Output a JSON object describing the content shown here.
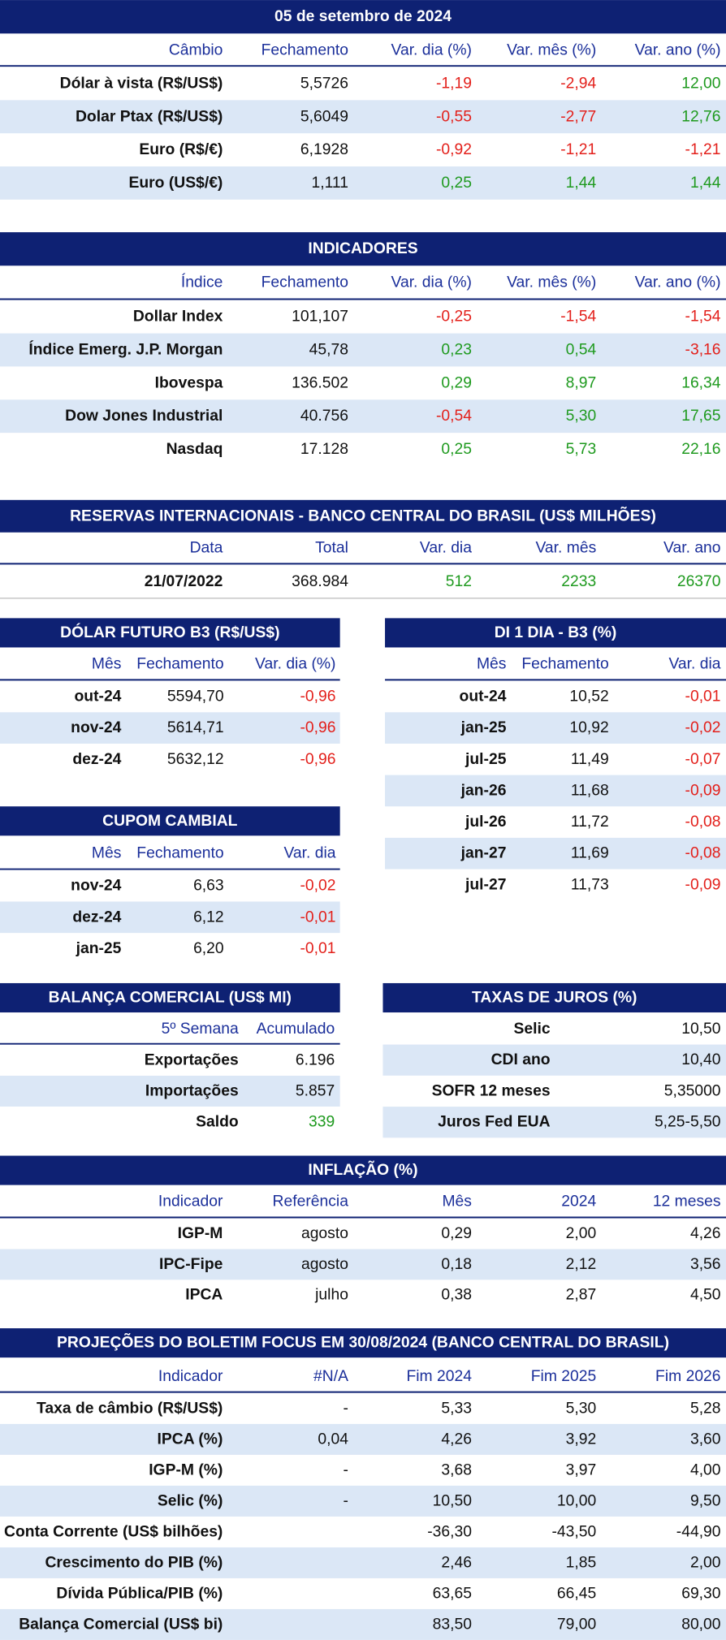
{
  "cambio": {
    "title": "05 de setembro de 2024",
    "columns": [
      "Câmbio",
      "Fechamento",
      "Var. dia (%)",
      "Var. mês (%)",
      "Var. ano (%)"
    ],
    "rows": [
      [
        "Dólar à vista (R$/US$)",
        "5,5726",
        "-1,19",
        "-2,94",
        "12,00"
      ],
      [
        "Dolar Ptax (R$/US$)",
        "5,6049",
        "-0,55",
        "-2,77",
        "12,76"
      ],
      [
        "Euro (R$/€)",
        "6,1928",
        "-0,92",
        "-1,21",
        "-1,21"
      ],
      [
        "Euro (US$/€)",
        "1,111",
        "0,25",
        "1,44",
        "1,44"
      ]
    ]
  },
  "indicadores": {
    "title": "INDICADORES",
    "columns": [
      "Índice",
      "Fechamento",
      "Var. dia (%)",
      "Var. mês (%)",
      "Var. ano (%)"
    ],
    "rows": [
      [
        "Dollar Index",
        "101,107",
        "-0,25",
        "-1,54",
        "-1,54"
      ],
      [
        "Índice Emerg. J.P. Morgan",
        "45,78",
        "0,23",
        "0,54",
        "-3,16"
      ],
      [
        "Ibovespa",
        "136.502",
        "0,29",
        "8,97",
        "16,34"
      ],
      [
        "Dow Jones Industrial",
        "40.756",
        "-0,54",
        "5,30",
        "17,65"
      ],
      [
        "Nasdaq",
        "17.128",
        "0,25",
        "5,73",
        "22,16"
      ]
    ]
  },
  "reservas": {
    "title": "RESERVAS INTERNACIONAIS - BANCO CENTRAL DO BRASIL (US$ MILHÕES)",
    "columns": [
      "Data",
      "Total",
      "Var. dia",
      "Var. mês",
      "Var. ano"
    ],
    "rows": [
      [
        "21/07/2022",
        "368.984",
        "512",
        "2233",
        "26370"
      ]
    ]
  },
  "dolar_futuro": {
    "title": "DÓLAR FUTURO B3 (R$/US$)",
    "columns": [
      "Mês",
      "Fechamento",
      "Var. dia (%)"
    ],
    "rows": [
      [
        "out-24",
        "5594,70",
        "-0,96"
      ],
      [
        "nov-24",
        "5614,71",
        "-0,96"
      ],
      [
        "dez-24",
        "5632,12",
        "-0,96"
      ]
    ]
  },
  "di": {
    "title": "DI 1 DIA - B3 (%)",
    "columns": [
      "Mês",
      "Fechamento",
      "Var. dia"
    ],
    "rows": [
      [
        "out-24",
        "10,52",
        "-0,01"
      ],
      [
        "jan-25",
        "10,92",
        "-0,02"
      ],
      [
        "jul-25",
        "11,49",
        "-0,07"
      ],
      [
        "jan-26",
        "11,68",
        "-0,09"
      ],
      [
        "jul-26",
        "11,72",
        "-0,08"
      ],
      [
        "jan-27",
        "11,69",
        "-0,08"
      ],
      [
        "jul-27",
        "11,73",
        "-0,09"
      ]
    ]
  },
  "cupom": {
    "title": "CUPOM CAMBIAL",
    "columns": [
      "Mês",
      "Fechamento",
      "Var. dia"
    ],
    "rows": [
      [
        "nov-24",
        "6,63",
        "-0,02"
      ],
      [
        "dez-24",
        "6,12",
        "-0,01"
      ],
      [
        "jan-25",
        "6,20",
        "-0,01"
      ]
    ]
  },
  "balanca": {
    "title": "BALANÇA COMERCIAL (US$ MI)",
    "columns": [
      "5º Semana",
      "Acumulado"
    ],
    "rows": [
      [
        "Exportações",
        "6.196"
      ],
      [
        "Importações",
        "5.857"
      ],
      [
        "Saldo",
        "339"
      ]
    ]
  },
  "juros": {
    "title": "TAXAS DE JUROS (%)",
    "rows": [
      [
        "Selic",
        "10,50"
      ],
      [
        "CDI ano",
        "10,40"
      ],
      [
        "SOFR 12 meses",
        "5,35000"
      ],
      [
        "Juros Fed EUA",
        "5,25-5,50"
      ]
    ]
  },
  "inflacao": {
    "title": "INFLAÇÃO (%)",
    "columns": [
      "Indicador",
      "Referência",
      "Mês",
      "2024",
      "12 meses"
    ],
    "rows": [
      [
        "IGP-M",
        "agosto",
        "0,29",
        "2,00",
        "4,26"
      ],
      [
        "IPC-Fipe",
        "agosto",
        "0,18",
        "2,12",
        "3,56"
      ],
      [
        "IPCA",
        "julho",
        "0,38",
        "2,87",
        "4,50"
      ]
    ]
  },
  "focus": {
    "title": "PROJEÇÕES DO BOLETIM FOCUS EM 30/08/2024 (BANCO CENTRAL DO BRASIL)",
    "columns": [
      "Indicador",
      "#N/A",
      "Fim 2024",
      "Fim 2025",
      "Fim 2026"
    ],
    "rows": [
      [
        "Taxa de câmbio (R$/US$)",
        "-",
        "5,33",
        "5,30",
        "5,28"
      ],
      [
        "IPCA (%)",
        "0,04",
        "4,26",
        "3,92",
        "3,60"
      ],
      [
        "IGP-M (%)",
        "-",
        "3,68",
        "3,97",
        "4,00"
      ],
      [
        "Selic (%)",
        "-",
        "10,50",
        "10,00",
        "9,50"
      ],
      [
        "Conta Corrente (US$ bilhões)",
        null,
        "-36,30",
        "-43,50",
        "-44,90"
      ],
      [
        "Crescimento do PIB (%)",
        null,
        "2,46",
        "1,85",
        "2,00"
      ],
      [
        "Dívida Pública/PIB (%)",
        null,
        "63,65",
        "66,45",
        "69,30"
      ],
      [
        "Balança Comercial (US$ bi)",
        null,
        "83,50",
        "79,00",
        "80,00"
      ]
    ]
  }
}
